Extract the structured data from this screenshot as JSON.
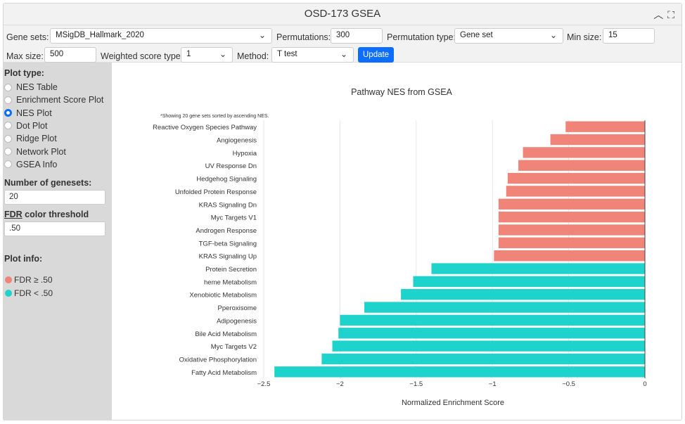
{
  "window": {
    "title": "OSD-173 GSEA"
  },
  "controls": {
    "gene_sets_label": "Gene sets:",
    "gene_sets_value": "MSigDB_Hallmark_2020",
    "permutations_label": "Permutations:",
    "permutations_value": "300",
    "permutation_type_label": "Permutation type:",
    "permutation_type_value": "Gene set",
    "min_size_label": "Min size:",
    "min_size_value": "15",
    "max_size_label": "Max size:",
    "max_size_value": "500",
    "weighted_label": "Weighted score type:",
    "weighted_value": "1",
    "method_label": "Method:",
    "method_value": "T test",
    "update_label": "Update"
  },
  "sidebar": {
    "plot_type_label": "Plot type:",
    "plot_types": [
      {
        "label": "NES Table",
        "selected": false
      },
      {
        "label": "Enrichment Score Plot",
        "selected": false
      },
      {
        "label": "NES Plot",
        "selected": true
      },
      {
        "label": "Dot Plot",
        "selected": false
      },
      {
        "label": "Ridge Plot",
        "selected": false
      },
      {
        "label": "Network Plot",
        "selected": false
      },
      {
        "label": "GSEA Info",
        "selected": false
      }
    ],
    "num_genesets_label": "Number of genesets:",
    "num_genesets_value": "20",
    "fdr_abbr": "FDR",
    "fdr_label_rest": " color threshold",
    "fdr_value": ".50",
    "plot_info_label": "Plot info:",
    "legend": [
      {
        "label": "FDR ≥ .50",
        "color": "#f08478"
      },
      {
        "label": "FDR < .50",
        "color": "#1dd3cb"
      }
    ]
  },
  "chart_data": {
    "type": "bar",
    "orientation": "horizontal",
    "title": "Pathway NES from GSEA",
    "subtitle": "*Showing 20 gene sets sorted by ascending NES.",
    "xlabel": "Normalized Enrichment Score",
    "ylabel": "",
    "xlim": [
      -2.5,
      0
    ],
    "xticks": [
      -2.5,
      -2,
      -1.5,
      -1,
      -0.5,
      0
    ],
    "xtick_labels": [
      "−2.5",
      "−2",
      "−1.5",
      "−1",
      "−0.5",
      "0"
    ],
    "grid": true,
    "categories": [
      "Reactive Oxygen Species Pathway",
      "Angiogenesis",
      "Hypoxia",
      "UV Response Dn",
      "Hedgehog Signaling",
      "Unfolded Protein Response",
      "KRAS Signaling Dn",
      "Myc Targets V1",
      "Androgen Response",
      "TGF-beta Signaling",
      "KRAS Signaling Up",
      "Protein Secretion",
      "heme Metabolism",
      "Xenobiotic Metabolism",
      "Pperoxisome",
      "Adipogenesis",
      "Bile Acid Metabolism",
      "Myc Targets V2",
      "Oxidative Phosphorylation",
      "Fatty Acid Metabolism"
    ],
    "values": [
      -0.52,
      -0.62,
      -0.8,
      -0.83,
      -0.9,
      -0.91,
      -0.96,
      -0.96,
      -0.96,
      -0.96,
      -0.99,
      -1.4,
      -1.52,
      -1.6,
      -1.84,
      -2.0,
      -2.01,
      -2.05,
      -2.12,
      -2.43
    ],
    "colors": [
      "#f08478",
      "#f08478",
      "#f08478",
      "#f08478",
      "#f08478",
      "#f08478",
      "#f08478",
      "#f08478",
      "#f08478",
      "#f08478",
      "#f08478",
      "#1dd3cb",
      "#1dd3cb",
      "#1dd3cb",
      "#1dd3cb",
      "#1dd3cb",
      "#1dd3cb",
      "#1dd3cb",
      "#1dd3cb",
      "#1dd3cb"
    ]
  }
}
